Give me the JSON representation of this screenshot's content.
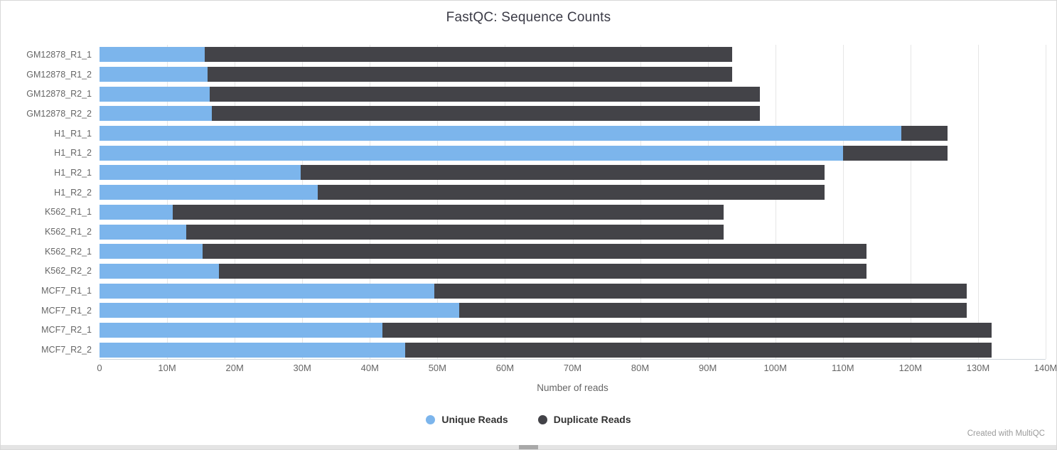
{
  "chart_data": {
    "type": "bar",
    "orientation": "horizontal",
    "stacked": true,
    "title": "FastQC: Sequence Counts",
    "xlabel": "Number of reads",
    "grid": true,
    "legend_position": "bottom",
    "xlim_millions": [
      0,
      140
    ],
    "x_tick_labels": [
      "0",
      "10M",
      "20M",
      "30M",
      "40M",
      "50M",
      "60M",
      "70M",
      "80M",
      "90M",
      "100M",
      "110M",
      "120M",
      "130M",
      "140M"
    ],
    "categories": [
      "GM12878_R1_1",
      "GM12878_R1_2",
      "GM12878_R2_1",
      "GM12878_R2_2",
      "H1_R1_1",
      "H1_R1_2",
      "H1_R2_1",
      "H1_R2_2",
      "K562_R1_1",
      "K562_R1_2",
      "K562_R2_1",
      "K562_R2_2",
      "MCF7_R1_1",
      "MCF7_R1_2",
      "MCF7_R2_1",
      "MCF7_R2_2"
    ],
    "series": [
      {
        "name": "Unique Reads",
        "color": "#7cb5ec",
        "values_millions": [
          15.6,
          16.0,
          16.3,
          16.6,
          118.6,
          110.0,
          29.8,
          32.3,
          10.8,
          12.8,
          15.3,
          17.7,
          49.5,
          53.2,
          41.9,
          45.2
        ]
      },
      {
        "name": "Duplicate Reads",
        "color": "#434348",
        "values_millions": [
          78.0,
          77.6,
          81.4,
          81.1,
          6.9,
          15.5,
          77.5,
          75.0,
          81.5,
          79.5,
          98.2,
          95.8,
          78.8,
          75.1,
          90.1,
          86.8
        ]
      }
    ],
    "totals_millions": [
      93.6,
      93.6,
      97.7,
      97.7,
      125.5,
      125.5,
      107.3,
      107.3,
      92.3,
      92.3,
      113.5,
      113.5,
      128.3,
      128.3,
      132.0,
      132.0
    ]
  },
  "footer": {
    "credit": "Created with MultiQC"
  }
}
